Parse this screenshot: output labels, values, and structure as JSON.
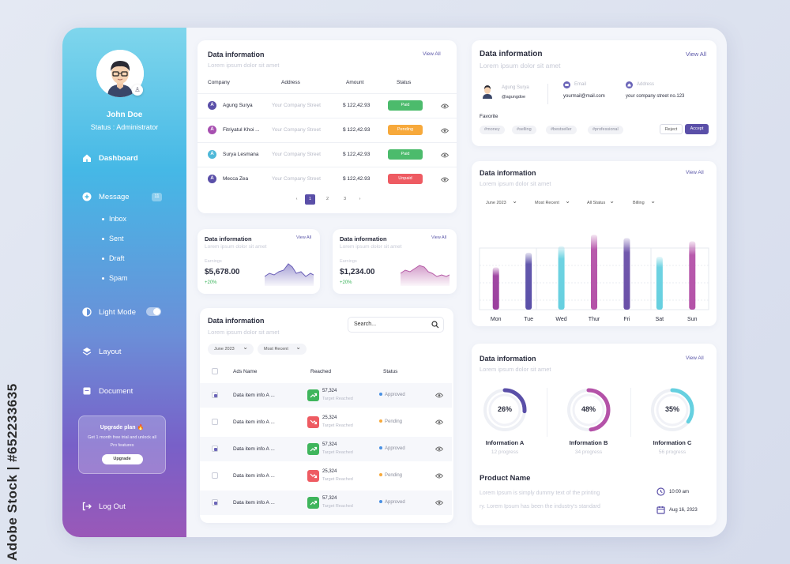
{
  "watermark": "Adobe Stock | #652233635",
  "sidebar": {
    "user_name": "John Doe",
    "user_status": "Status : Administrator",
    "nav": [
      {
        "label": "Dashboard",
        "icon": "home-icon"
      },
      {
        "label": "Message",
        "icon": "message-icon",
        "badge": "11"
      },
      {
        "label": "Light Mode",
        "icon": "contrast-icon",
        "toggle": true
      },
      {
        "label": "Layout",
        "icon": "layers-icon"
      },
      {
        "label": "Document",
        "icon": "document-icon"
      },
      {
        "label": "Log Out",
        "icon": "logout-icon"
      }
    ],
    "sub_items": [
      "Inbox",
      "Sent",
      "Draft",
      "Spam"
    ],
    "upgrade": {
      "title": "Upgrade plan 🔥",
      "desc": "Get 1 month free trial and unlock all Pro features",
      "button": "Upgrade"
    }
  },
  "table_card": {
    "title": "Data information",
    "subtitle": "Lorem ipsum dolor sit amet",
    "view_all": "View All",
    "columns": [
      "Company",
      "Address",
      "Amount",
      "Status"
    ],
    "rows": [
      {
        "letter": "A",
        "letter_color": "#5a4fa8",
        "company": "Agung Surya",
        "address": "Your Company Street",
        "amount": "$ 122,42.93",
        "status": "Paid",
        "status_color": "#4cbb6c"
      },
      {
        "letter": "A",
        "letter_color": "#a74fb0",
        "company": "Fitriyatul Khoi ...",
        "address": "Your Company Street",
        "amount": "$ 122,42.93",
        "status": "Pending",
        "status_color": "#f7a93b"
      },
      {
        "letter": "A",
        "letter_color": "#4fb8d8",
        "company": "Surya Lesmana",
        "address": "Your Company Street",
        "amount": "$ 122,42.93",
        "status": "Paid",
        "status_color": "#4cbb6c"
      },
      {
        "letter": "A",
        "letter_color": "#5a4fa8",
        "company": "Mecca Zea",
        "address": "Your Company Street",
        "amount": "$ 122,42.93",
        "status": "Unpaid",
        "status_color": "#ee5b62"
      }
    ],
    "pagination": {
      "prev": "‹",
      "pages": [
        "1",
        "2",
        "3"
      ],
      "next": "›",
      "current": "1"
    }
  },
  "earnings_cards": [
    {
      "title": "Data information",
      "subtitle": "Lorem ipsum dolor sit amet",
      "view_all": "View All",
      "label": "Earnings",
      "value": "$5,678.00",
      "change": "+20%",
      "color": "#6a5fb8"
    },
    {
      "title": "Data information",
      "subtitle": "Lorem ipsum dolor sit amet",
      "view_all": "View All",
      "label": "Earnings",
      "value": "$1,234.00",
      "change": "+20%",
      "color": "#b55aa6"
    }
  ],
  "ads_card": {
    "title": "Data information",
    "subtitle": "Lorem ipsum dolor sit amet",
    "search_placeholder": "Search...",
    "filters": [
      "June 2023",
      "Most Recent"
    ],
    "columns": [
      "Ads Name",
      "Reached",
      "Status"
    ],
    "rows": [
      {
        "checked": true,
        "name": "Data item info A ...",
        "reached": "57,324",
        "note": "Target Reached",
        "trend": "up",
        "status": "Approved",
        "status_color": "#4a90e2"
      },
      {
        "checked": false,
        "name": "Data item info A ...",
        "reached": "25,324",
        "note": "Target Reached",
        "trend": "down",
        "status": "Pending",
        "status_color": "#f7a93b"
      },
      {
        "checked": true,
        "name": "Data item info A ...",
        "reached": "57,324",
        "note": "Target Reached",
        "trend": "up",
        "status": "Approved",
        "status_color": "#4a90e2"
      },
      {
        "checked": false,
        "name": "Data item info A ...",
        "reached": "25,324",
        "note": "Target Reached",
        "trend": "down",
        "status": "Pending",
        "status_color": "#f7a93b"
      },
      {
        "checked": true,
        "name": "Data item info A ...",
        "reached": "57,324",
        "note": "Target Reached",
        "trend": "up",
        "status": "Approved",
        "status_color": "#4a90e2"
      }
    ]
  },
  "profile_card": {
    "title": "Data information",
    "subtitle": "Lorem ipsum dolor sit amet",
    "view_all": "View All",
    "name": "Agung Surya",
    "handle": "@agungdoe",
    "email_label": "Email",
    "email": "yourmail@mail.com",
    "address_label": "Address",
    "address": "your company street no.123",
    "favorite_label": "Favorite",
    "tags": [
      "#money",
      "#selling",
      "#bestseller",
      "#professional"
    ],
    "reject": "Reject",
    "accept": "Accept"
  },
  "bar_card": {
    "title": "Data information",
    "subtitle": "Lorem ipsum dolor sit amet",
    "view_all": "View All",
    "filters": [
      "June 2023",
      "Most Recent",
      "All Status",
      "Billing"
    ]
  },
  "chart_data": {
    "type": "bar",
    "categories": [
      "Mon",
      "Tue",
      "Wed",
      "Thur",
      "Fri",
      "Sat",
      "Sun"
    ],
    "values": [
      52,
      70,
      78,
      92,
      88,
      65,
      84
    ],
    "ylim": [
      0,
      100
    ],
    "colors": [
      "#9b3f9e",
      "#5a4fa8",
      "#66d0e0",
      "#b452a8",
      "#6a4fa8",
      "#66d0e0",
      "#b452a8"
    ],
    "grid": true
  },
  "donut_card": {
    "title": "Data information",
    "subtitle": "Lorem ipsum dolor sit amet",
    "view_all": "View All",
    "items": [
      {
        "pct": "26%",
        "value": 26,
        "label": "Information A",
        "sub": "12 progress",
        "color": "#5a4fa8"
      },
      {
        "pct": "48%",
        "value": 48,
        "label": "Information B",
        "sub": "34 progress",
        "color": "#b452a8"
      },
      {
        "pct": "35%",
        "value": 35,
        "label": "Information C",
        "sub": "56 progress",
        "color": "#66d0e0"
      }
    ],
    "product_title": "Product Name",
    "product_desc_1": "Lorem Ipsum is simply dummy text of the printing",
    "product_desc_2": "ry. Lorem Ipsum has been the industry's standard",
    "time": "10:00 am",
    "date": "Aug 16, 2023"
  }
}
